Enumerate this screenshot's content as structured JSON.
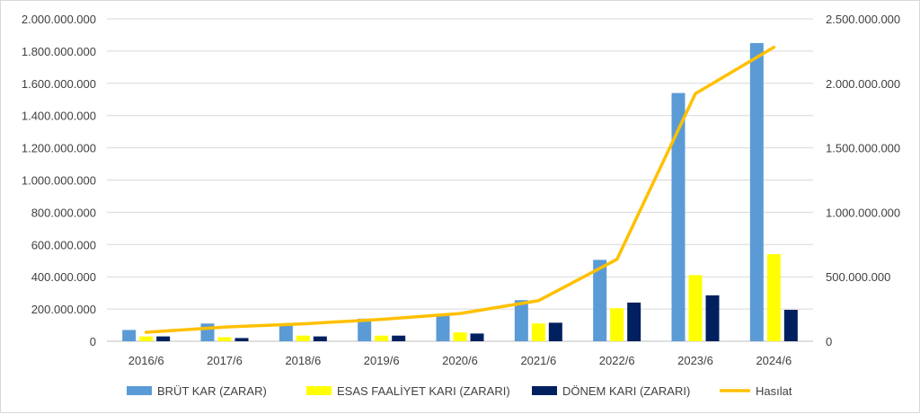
{
  "chart_data": {
    "type": "bar",
    "categories": [
      "2016/6",
      "2017/6",
      "2018/6",
      "2019/6",
      "2020/6",
      "2021/6",
      "2022/6",
      "2023/6",
      "2024/6"
    ],
    "series": [
      {
        "name": "BRÜT KAR (ZARAR)",
        "type": "bar",
        "axis": "left",
        "color": "#5b9bd5",
        "values": [
          70000000,
          110000000,
          100000000,
          140000000,
          170000000,
          255000000,
          505000000,
          1540000000,
          1850000000
        ]
      },
      {
        "name": "ESAS FAALİYET KARI (ZARARI)",
        "type": "bar",
        "axis": "left",
        "color": "#ffff00",
        "values": [
          30000000,
          25000000,
          35000000,
          35000000,
          55000000,
          110000000,
          205000000,
          410000000,
          540000000
        ]
      },
      {
        "name": "DÖNEM KARI (ZARARI)",
        "type": "bar",
        "axis": "left",
        "color": "#002060",
        "values": [
          30000000,
          20000000,
          30000000,
          35000000,
          48000000,
          115000000,
          240000000,
          285000000,
          195000000
        ]
      },
      {
        "name": "Hasılat",
        "type": "line",
        "axis": "right",
        "color": "#ffc000",
        "values": [
          70000000,
          110000000,
          135000000,
          170000000,
          215000000,
          315000000,
          635000000,
          1920000000,
          2280000000
        ]
      }
    ],
    "y_left": {
      "min": 0,
      "max": 2000000000,
      "ticks": [
        "0",
        "200.000.000",
        "400.000.000",
        "600.000.000",
        "800.000.000",
        "1.000.000.000",
        "1.200.000.000",
        "1.400.000.000",
        "1.600.000.000",
        "1.800.000.000",
        "2.000.000.000"
      ]
    },
    "y_right": {
      "min": 0,
      "max": 2500000000,
      "ticks": [
        "0",
        "500.000.000",
        "1.000.000.000",
        "1.500.000.000",
        "2.000.000.000",
        "2.500.000.000"
      ]
    },
    "grid": true,
    "legend_position": "bottom",
    "title": "",
    "xlabel": "",
    "ylabel": ""
  }
}
